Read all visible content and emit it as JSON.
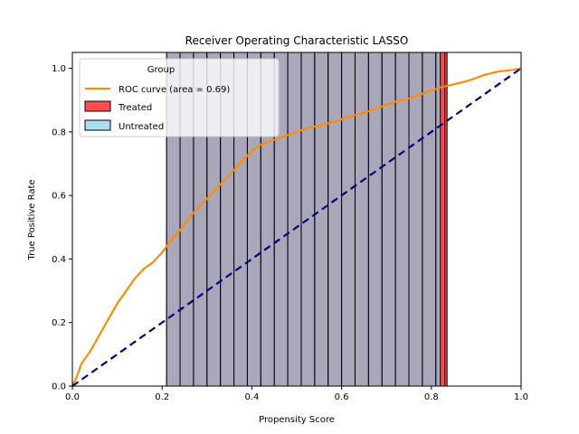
{
  "chart_data": {
    "type": "line",
    "title": "Receiver Operating Characteristic LASSO",
    "xlabel": "Propensity Score",
    "ylabel": "True Positive Rate",
    "xlim": [
      0.0,
      1.0
    ],
    "ylim": [
      0.0,
      1.05
    ],
    "xticks": [
      "0.0",
      "0.2",
      "0.4",
      "0.6",
      "0.8",
      "1.0"
    ],
    "yticks": [
      "0.0",
      "0.2",
      "0.4",
      "0.6",
      "0.8",
      "1.0"
    ],
    "grid": false,
    "legend": {
      "title": "Group",
      "placement": "top-left",
      "entries": [
        "ROC curve (area = 0.69)",
        "Treated",
        "Untreated"
      ]
    },
    "series": [
      {
        "name": "ROC curve (area = 0.69)",
        "color": "#ff8c00",
        "x": [
          0.0,
          0.01,
          0.02,
          0.04,
          0.06,
          0.08,
          0.1,
          0.12,
          0.14,
          0.16,
          0.18,
          0.2,
          0.22,
          0.24,
          0.26,
          0.28,
          0.3,
          0.32,
          0.34,
          0.36,
          0.38,
          0.4,
          0.42,
          0.44,
          0.46,
          0.48,
          0.5,
          0.52,
          0.55,
          0.58,
          0.6,
          0.62,
          0.65,
          0.68,
          0.7,
          0.72,
          0.75,
          0.78,
          0.8,
          0.82,
          0.85,
          0.88,
          0.9,
          0.92,
          0.95,
          0.98,
          1.0
        ],
        "y": [
          0.0,
          0.03,
          0.07,
          0.11,
          0.16,
          0.21,
          0.26,
          0.3,
          0.34,
          0.37,
          0.39,
          0.42,
          0.46,
          0.49,
          0.53,
          0.56,
          0.59,
          0.62,
          0.65,
          0.68,
          0.71,
          0.74,
          0.76,
          0.77,
          0.78,
          0.79,
          0.8,
          0.81,
          0.82,
          0.83,
          0.84,
          0.85,
          0.86,
          0.875,
          0.885,
          0.895,
          0.905,
          0.92,
          0.93,
          0.94,
          0.95,
          0.96,
          0.97,
          0.98,
          0.99,
          0.995,
          1.0
        ]
      },
      {
        "name": "",
        "color": "#000080",
        "style": "dashed",
        "x": [
          0.0,
          1.0
        ],
        "y": [
          0.0,
          1.0
        ]
      }
    ],
    "histograms": [
      {
        "name": "Treated",
        "color": "#ff0000",
        "alpha": 0.7,
        "bins": [
          [
            0.21,
            0.24
          ],
          [
            0.24,
            0.27
          ],
          [
            0.27,
            0.3
          ],
          [
            0.3,
            0.33
          ],
          [
            0.33,
            0.36
          ],
          [
            0.36,
            0.39
          ],
          [
            0.39,
            0.42
          ],
          [
            0.42,
            0.45
          ],
          [
            0.45,
            0.48
          ],
          [
            0.48,
            0.51
          ],
          [
            0.51,
            0.54
          ],
          [
            0.54,
            0.57
          ],
          [
            0.57,
            0.6
          ],
          [
            0.6,
            0.63
          ],
          [
            0.63,
            0.66
          ],
          [
            0.66,
            0.69
          ],
          [
            0.69,
            0.72
          ],
          [
            0.72,
            0.75
          ],
          [
            0.75,
            0.78
          ],
          [
            0.78,
            0.81
          ],
          [
            0.81,
            0.83
          ],
          [
            0.83,
            0.835
          ]
        ],
        "values": [
          1.05,
          1.05,
          1.05,
          1.05,
          1.05,
          1.05,
          1.05,
          1.05,
          1.05,
          1.05,
          1.05,
          1.05,
          1.05,
          1.05,
          1.05,
          1.05,
          1.05,
          1.05,
          1.05,
          1.05,
          1.05,
          1.05
        ]
      },
      {
        "name": "Untreated",
        "color": "#87ceeb",
        "alpha": 0.7,
        "bins": [
          [
            0.21,
            0.24
          ],
          [
            0.24,
            0.27
          ],
          [
            0.27,
            0.3
          ],
          [
            0.3,
            0.33
          ],
          [
            0.33,
            0.36
          ],
          [
            0.36,
            0.39
          ],
          [
            0.39,
            0.42
          ],
          [
            0.42,
            0.45
          ],
          [
            0.45,
            0.48
          ],
          [
            0.48,
            0.51
          ],
          [
            0.51,
            0.54
          ],
          [
            0.54,
            0.57
          ],
          [
            0.57,
            0.6
          ],
          [
            0.6,
            0.63
          ],
          [
            0.63,
            0.66
          ],
          [
            0.66,
            0.69
          ],
          [
            0.69,
            0.72
          ],
          [
            0.72,
            0.75
          ],
          [
            0.75,
            0.78
          ],
          [
            0.78,
            0.81
          ],
          [
            0.81,
            0.82
          ]
        ],
        "values": [
          1.05,
          1.05,
          1.05,
          1.05,
          1.05,
          1.05,
          1.05,
          1.05,
          1.05,
          1.05,
          1.05,
          1.05,
          1.05,
          1.05,
          1.05,
          1.05,
          1.05,
          1.05,
          1.05,
          1.05,
          1.05
        ]
      }
    ]
  }
}
